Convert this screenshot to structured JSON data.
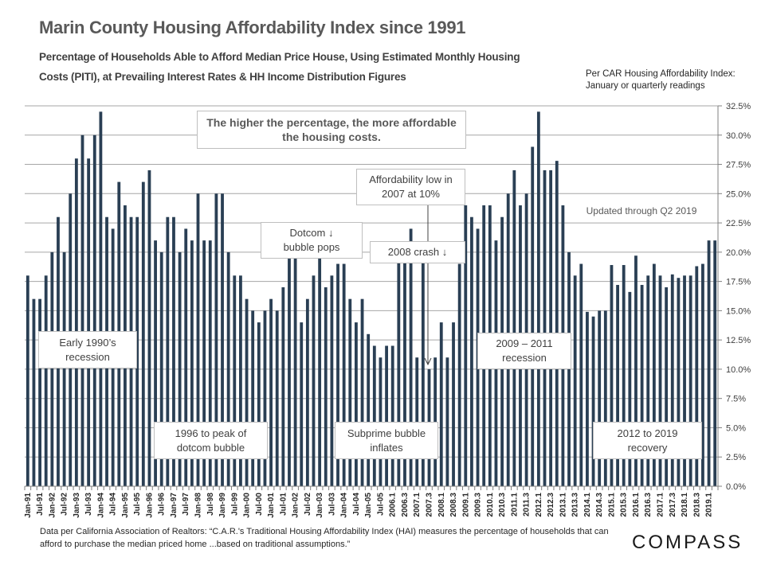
{
  "header": {
    "title": "Marin County Housing Affordability Index since 1991",
    "subtitle_line1": "Percentage of Households Able to Afford Median Price House, Using Estimated Monthly Housing",
    "subtitle_line2": "Costs (PITI), at Prevailing Interest Rates & HH Income Distribution Figures",
    "note_line1": "Per CAR Housing Affordability Index:",
    "note_line2": "January or quarterly readings"
  },
  "annotations": {
    "higher": "The higher the percentage, the more affordable the housing costs.",
    "early90s": "Early 1990’s recession",
    "dotcom_peak": "1996 to peak of dotcom bubble",
    "dotcom_pops": "Dotcom ↓ bubble pops",
    "subprime": "Subprime bubble inflates",
    "afford_low": "Affordability low in 2007 at 10%",
    "crash_2008": "2008 crash ↓",
    "recession_0911": "2009 – 2011 recession",
    "recovery": "2012 to 2019 recovery",
    "updated": "Updated through Q2 2019"
  },
  "footer": {
    "source": "Data per California Association of Realtors: “C.A.R.'s Traditional Housing Affordability Index (HAI) measures the percentage of households that can afford to purchase the median priced home ...based on traditional assumptions.”",
    "logo": "COMPASS"
  },
  "colors": {
    "bar": "#2a3f54",
    "grid": "#a6a6a6",
    "axis": "#808080"
  },
  "chart_data": {
    "type": "bar",
    "title": "Marin County Housing Affordability Index since 1991",
    "xlabel": "",
    "ylabel": "Percentage of households able to afford median price house",
    "ylim": [
      0,
      32.5
    ],
    "y_axis_side": "right",
    "yticks": [
      "0.0%",
      "2.5%",
      "5.0%",
      "7.5%",
      "10.0%",
      "12.5%",
      "15.0%",
      "17.5%",
      "20.0%",
      "22.5%",
      "25.0%",
      "27.5%",
      "30.0%",
      "32.5%"
    ],
    "grid": true,
    "tick_labels": [
      "Jan-91",
      "Jul-91",
      "Jan-92",
      "Jul-92",
      "Jan-93",
      "Jul-93",
      "Jan-94",
      "Jul-94",
      "Jan-95",
      "Jul-95",
      "Jan-96",
      "Jul-96",
      "Jan-97",
      "Jul-97",
      "Jan-98",
      "Jul-98",
      "Jan-99",
      "Jul-99",
      "Jan-00",
      "Jul-00",
      "Jan-01",
      "Jul-01",
      "Jan-02",
      "Jul-02",
      "Jan-03",
      "Jul-03",
      "Jan-04",
      "Jul-04",
      "Jan-05",
      "Jul-05",
      "2006.1",
      "2006.3",
      "2007.1",
      "2007.3",
      "2008.1",
      "2008.3",
      "2009.1",
      "2009.3",
      "2010.1",
      "2010.3",
      "2011.1",
      "2011.3",
      "2012.1",
      "2012.3",
      "2013.1",
      "2013.3",
      "2014.1",
      "2014.3",
      "2015.1",
      "2015.3",
      "2016.1",
      "2016.3",
      "2017.1",
      "2017.3",
      "2018.1",
      "2018.3",
      "2019.1"
    ],
    "values": [
      18,
      16,
      16,
      18,
      20,
      23,
      20,
      25,
      28,
      30,
      28,
      30,
      32,
      23,
      22,
      26,
      24,
      23,
      23,
      26,
      27,
      21,
      20,
      23,
      23,
      20,
      22,
      21,
      25,
      21,
      21,
      25,
      25,
      20,
      18,
      18,
      16,
      15,
      14,
      15,
      16,
      15,
      17,
      20,
      20,
      14,
      16,
      18,
      20,
      17,
      18,
      19,
      19,
      16,
      14,
      16,
      13,
      12,
      11,
      12,
      12,
      20,
      20,
      22,
      11,
      20,
      10,
      11,
      14,
      11,
      14,
      19,
      24,
      23,
      22,
      24,
      24,
      21,
      23,
      25,
      27,
      24,
      25,
      29,
      32,
      27,
      27,
      27.8,
      24,
      20,
      18,
      19,
      14.9,
      14.5,
      15,
      15,
      18.9,
      17.2,
      18.9,
      16.6,
      19.7,
      17.2,
      18,
      19,
      18,
      17,
      18.1,
      17.8,
      18,
      18,
      18.8,
      19,
      21,
      21
    ],
    "series": [
      {
        "name": "Housing Affordability Index (%)"
      }
    ]
  }
}
